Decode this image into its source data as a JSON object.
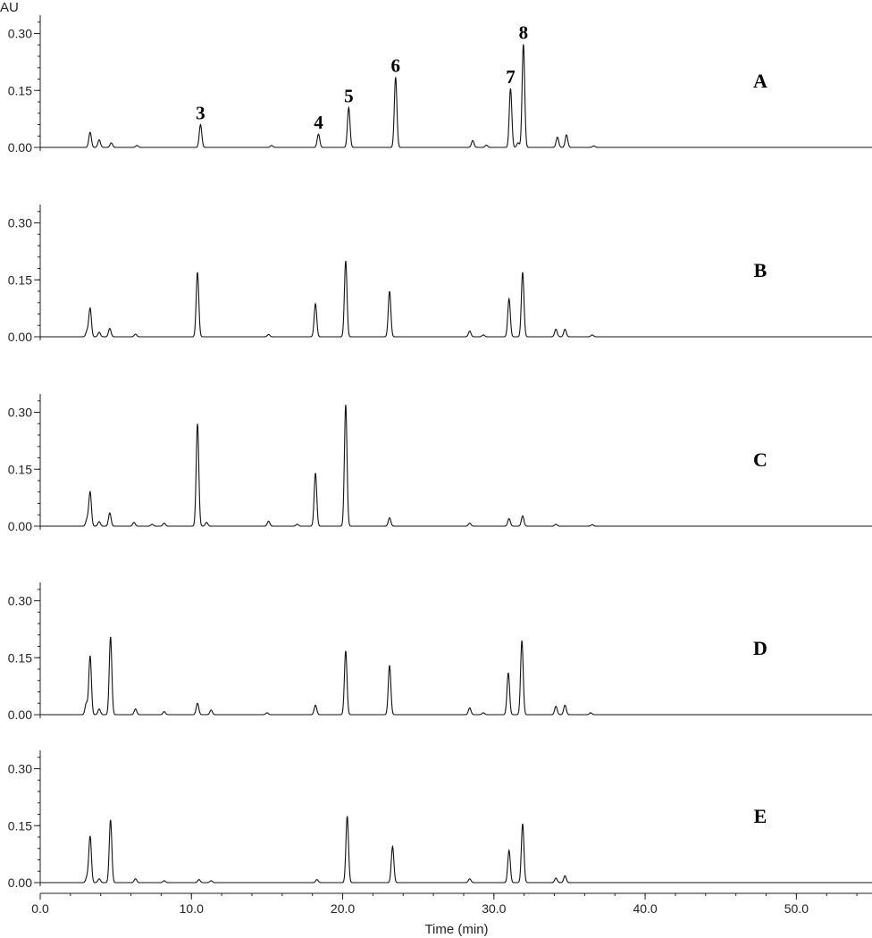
{
  "chart_data": {
    "type": "line",
    "y_unit_label": "AU",
    "xlabel": "Time (min)",
    "xlim": [
      0,
      55
    ],
    "ylim": [
      -0.01,
      0.33
    ],
    "x_ticks": [
      {
        "value": 0,
        "label": "0.0"
      },
      {
        "value": 10,
        "label": "10.0"
      },
      {
        "value": 20,
        "label": "20.0"
      },
      {
        "value": 30,
        "label": "30.0"
      },
      {
        "value": 40,
        "label": "40.0"
      },
      {
        "value": 50,
        "label": "50.0"
      }
    ],
    "y_ticks": [
      {
        "value": 0,
        "label": "0.00"
      },
      {
        "value": 0.15,
        "label": "0.15"
      },
      {
        "value": 0.3,
        "label": "0.30"
      }
    ],
    "grid": false,
    "panels": [
      {
        "label": "A",
        "peaks": [
          {
            "x": 3.3,
            "y": 0.04
          },
          {
            "x": 3.9,
            "y": 0.02
          },
          {
            "x": 4.7,
            "y": 0.012
          },
          {
            "x": 6.4,
            "y": 0.005
          },
          {
            "x": 10.6,
            "y": 0.06,
            "label": "3"
          },
          {
            "x": 15.3,
            "y": 0.005
          },
          {
            "x": 18.4,
            "y": 0.035,
            "label": "4"
          },
          {
            "x": 20.4,
            "y": 0.105,
            "label": "5"
          },
          {
            "x": 23.5,
            "y": 0.185,
            "label": "6"
          },
          {
            "x": 28.6,
            "y": 0.018
          },
          {
            "x": 29.5,
            "y": 0.006
          },
          {
            "x": 31.1,
            "y": 0.155,
            "label": "7"
          },
          {
            "x": 31.6,
            "y": 0.012
          },
          {
            "x": 31.95,
            "y": 0.272,
            "label": "8"
          },
          {
            "x": 34.2,
            "y": 0.027
          },
          {
            "x": 34.8,
            "y": 0.033
          },
          {
            "x": 36.6,
            "y": 0.004
          }
        ]
      },
      {
        "label": "B",
        "peaks": [
          {
            "x": 3.1,
            "y": 0.015
          },
          {
            "x": 3.3,
            "y": 0.075
          },
          {
            "x": 3.9,
            "y": 0.012
          },
          {
            "x": 4.6,
            "y": 0.022
          },
          {
            "x": 6.3,
            "y": 0.007
          },
          {
            "x": 10.4,
            "y": 0.17
          },
          {
            "x": 15.1,
            "y": 0.006
          },
          {
            "x": 18.2,
            "y": 0.087
          },
          {
            "x": 20.2,
            "y": 0.2
          },
          {
            "x": 23.1,
            "y": 0.12
          },
          {
            "x": 28.4,
            "y": 0.015
          },
          {
            "x": 29.3,
            "y": 0.005
          },
          {
            "x": 31.0,
            "y": 0.1
          },
          {
            "x": 31.9,
            "y": 0.17
          },
          {
            "x": 34.1,
            "y": 0.02
          },
          {
            "x": 34.7,
            "y": 0.02
          },
          {
            "x": 36.5,
            "y": 0.005
          }
        ]
      },
      {
        "label": "C",
        "peaks": [
          {
            "x": 3.1,
            "y": 0.018
          },
          {
            "x": 3.3,
            "y": 0.09
          },
          {
            "x": 3.9,
            "y": 0.012
          },
          {
            "x": 4.6,
            "y": 0.035
          },
          {
            "x": 6.2,
            "y": 0.01
          },
          {
            "x": 7.4,
            "y": 0.005
          },
          {
            "x": 8.2,
            "y": 0.008
          },
          {
            "x": 10.4,
            "y": 0.27
          },
          {
            "x": 11.0,
            "y": 0.01
          },
          {
            "x": 15.1,
            "y": 0.013
          },
          {
            "x": 17.0,
            "y": 0.005
          },
          {
            "x": 18.2,
            "y": 0.14
          },
          {
            "x": 20.2,
            "y": 0.32
          },
          {
            "x": 23.1,
            "y": 0.022
          },
          {
            "x": 28.4,
            "y": 0.008
          },
          {
            "x": 31.0,
            "y": 0.02
          },
          {
            "x": 31.9,
            "y": 0.027
          },
          {
            "x": 34.1,
            "y": 0.005
          },
          {
            "x": 36.5,
            "y": 0.004
          }
        ]
      },
      {
        "label": "D",
        "peaks": [
          {
            "x": 3.05,
            "y": 0.03
          },
          {
            "x": 3.3,
            "y": 0.155
          },
          {
            "x": 3.9,
            "y": 0.015
          },
          {
            "x": 4.65,
            "y": 0.205
          },
          {
            "x": 6.3,
            "y": 0.015
          },
          {
            "x": 8.2,
            "y": 0.008
          },
          {
            "x": 10.4,
            "y": 0.03
          },
          {
            "x": 11.3,
            "y": 0.012
          },
          {
            "x": 15.0,
            "y": 0.005
          },
          {
            "x": 18.2,
            "y": 0.025
          },
          {
            "x": 20.2,
            "y": 0.168
          },
          {
            "x": 23.1,
            "y": 0.13
          },
          {
            "x": 28.4,
            "y": 0.018
          },
          {
            "x": 29.3,
            "y": 0.005
          },
          {
            "x": 30.95,
            "y": 0.11
          },
          {
            "x": 31.85,
            "y": 0.195
          },
          {
            "x": 34.1,
            "y": 0.022
          },
          {
            "x": 34.7,
            "y": 0.025
          },
          {
            "x": 36.4,
            "y": 0.005
          }
        ]
      },
      {
        "label": "E",
        "peaks": [
          {
            "x": 3.1,
            "y": 0.015
          },
          {
            "x": 3.3,
            "y": 0.122
          },
          {
            "x": 3.9,
            "y": 0.01
          },
          {
            "x": 4.65,
            "y": 0.165
          },
          {
            "x": 6.3,
            "y": 0.01
          },
          {
            "x": 8.2,
            "y": 0.005
          },
          {
            "x": 10.5,
            "y": 0.008
          },
          {
            "x": 11.3,
            "y": 0.005
          },
          {
            "x": 18.3,
            "y": 0.008
          },
          {
            "x": 20.3,
            "y": 0.175
          },
          {
            "x": 23.3,
            "y": 0.095
          },
          {
            "x": 28.4,
            "y": 0.01
          },
          {
            "x": 31.0,
            "y": 0.085
          },
          {
            "x": 31.9,
            "y": 0.155
          },
          {
            "x": 34.1,
            "y": 0.012
          },
          {
            "x": 34.7,
            "y": 0.018
          }
        ]
      }
    ]
  }
}
